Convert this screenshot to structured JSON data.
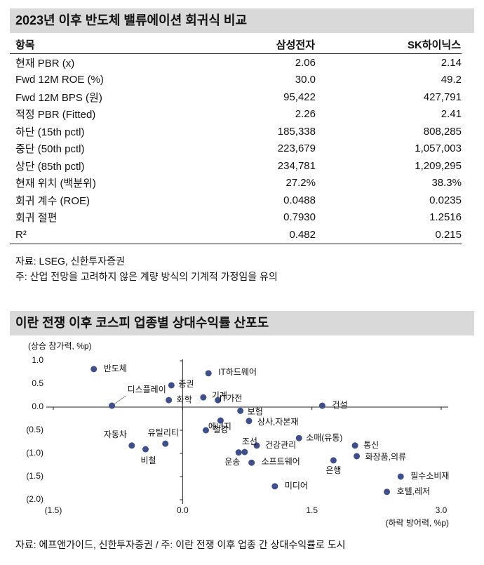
{
  "section1": {
    "title": "2023년 이후 반도체 밸류에이션 회귀식 비교",
    "table": {
      "header": [
        "항목",
        "삼성전자",
        "SK하이닉스"
      ],
      "rows": [
        [
          "현재 PBR (x)",
          "2.06",
          "2.14"
        ],
        [
          "Fwd 12M ROE (%)",
          "30.0",
          "49.2"
        ],
        [
          "Fwd 12M BPS (원)",
          "95,422",
          "427,791"
        ],
        [
          "적정 PBR (Fitted)",
          "2.26",
          "2.41"
        ],
        [
          "하단 (15th pctl)",
          "185,338",
          "808,285"
        ],
        [
          "중단 (50th pctl)",
          "223,679",
          "1,057,003"
        ],
        [
          "상단 (85th pctl)",
          "234,781",
          "1,209,295"
        ],
        [
          "현재 위치 (백분위)",
          "27.2%",
          "38.3%"
        ],
        [
          "회귀 계수 (ROE)",
          "0.0488",
          "0.0235"
        ],
        [
          "회귀 절편",
          "0.7930",
          "1.2516"
        ],
        [
          "R²",
          "0.482",
          "0.215"
        ]
      ]
    },
    "source": "자료: LSEG, 신한투자증권",
    "note": "주: 산업 전망을 고려하지 않은 계량 방식의 기계적 가정임을 유의"
  },
  "chart_data": {
    "type": "scatter",
    "title": "이란 전쟁 이후 코스피 업종별 상대수익률 산포도",
    "ylabel": "(상승 참가력, %p)",
    "xlabel": "(하락 방어력, %p)",
    "color": "#3f4f8c",
    "xlim": [
      -1.5,
      3.0
    ],
    "ylim": [
      -2.0,
      1.0
    ],
    "xticks": [
      {
        "value": -1.5,
        "label": "(1.5)"
      },
      {
        "value": 0,
        "label": "0.0"
      },
      1.5,
      {
        "value": 3,
        "label": "3.0"
      }
    ],
    "yticks": [
      {
        "value": 1,
        "label": "1.0"
      },
      0.5,
      {
        "value": 0,
        "label": "0.0"
      },
      {
        "value": -0.5,
        "label": "(0.5)"
      },
      {
        "value": -1,
        "label": "(1.0)"
      },
      {
        "value": -1.5,
        "label": "(1.5)"
      },
      {
        "value": -2,
        "label": "(2.0)"
      }
    ],
    "labels": [
      "반도체",
      "디스플레이",
      "증권",
      "화학",
      "IT하드웨어",
      "기계",
      "IT가전",
      "보험",
      "에너지",
      "상사,자본재",
      "철강",
      "건설",
      "소매(유통)",
      "통신",
      "화장품,의류",
      "은행",
      "필수소비재",
      "호텔,레저",
      "건강관리",
      "조선",
      "운송",
      "소프트웨어",
      "미디어",
      "자동차",
      "비철",
      "유틸리티"
    ],
    "x": [
      -1.03,
      -0.82,
      -0.13,
      -0.16,
      0.3,
      0.24,
      0.41,
      0.67,
      0.44,
      0.77,
      0.27,
      1.62,
      1.35,
      2.0,
      2.02,
      1.75,
      2.53,
      2.37,
      0.86,
      0.72,
      0.65,
      0.8,
      1.07,
      -0.59,
      -0.43,
      -0.2
    ],
    "y": [
      0.82,
      0.03,
      0.47,
      0.15,
      0.73,
      0.21,
      0.15,
      -0.08,
      -0.29,
      -0.3,
      -0.5,
      0.03,
      -0.67,
      -0.83,
      -1.06,
      -1.15,
      -1.5,
      -1.83,
      -0.83,
      -0.97,
      -0.98,
      -1.2,
      -1.71,
      -0.83,
      -0.91,
      -0.79
    ]
  },
  "footer": "자료: 에프앤가이드, 신한투자증권 / 주: 이란 전쟁 이후 업종 간 상대수익률로 도시"
}
